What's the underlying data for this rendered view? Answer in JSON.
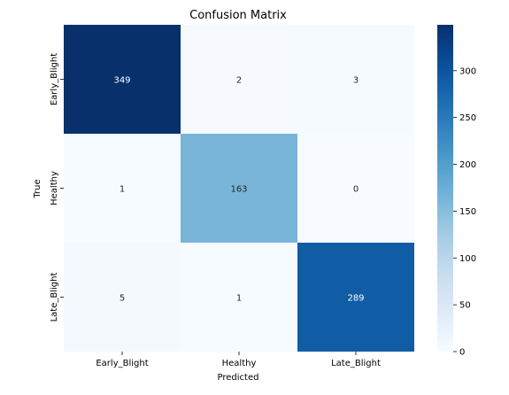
{
  "chart_data": {
    "type": "heatmap",
    "title": "Confusion Matrix",
    "xlabel": "Predicted",
    "ylabel": "True",
    "x_categories": [
      "Early_Blight",
      "Healthy",
      "Late_Blight"
    ],
    "y_categories": [
      "Early_Blight",
      "Healthy",
      "Late_Blight"
    ],
    "values": [
      [
        349,
        2,
        3
      ],
      [
        1,
        163,
        0
      ],
      [
        5,
        1,
        289
      ]
    ],
    "colormap": "Blues",
    "colorbar_range": [
      0,
      349
    ],
    "colorbar_ticks": [
      0,
      50,
      100,
      150,
      200,
      250,
      300
    ],
    "annotations": true
  }
}
